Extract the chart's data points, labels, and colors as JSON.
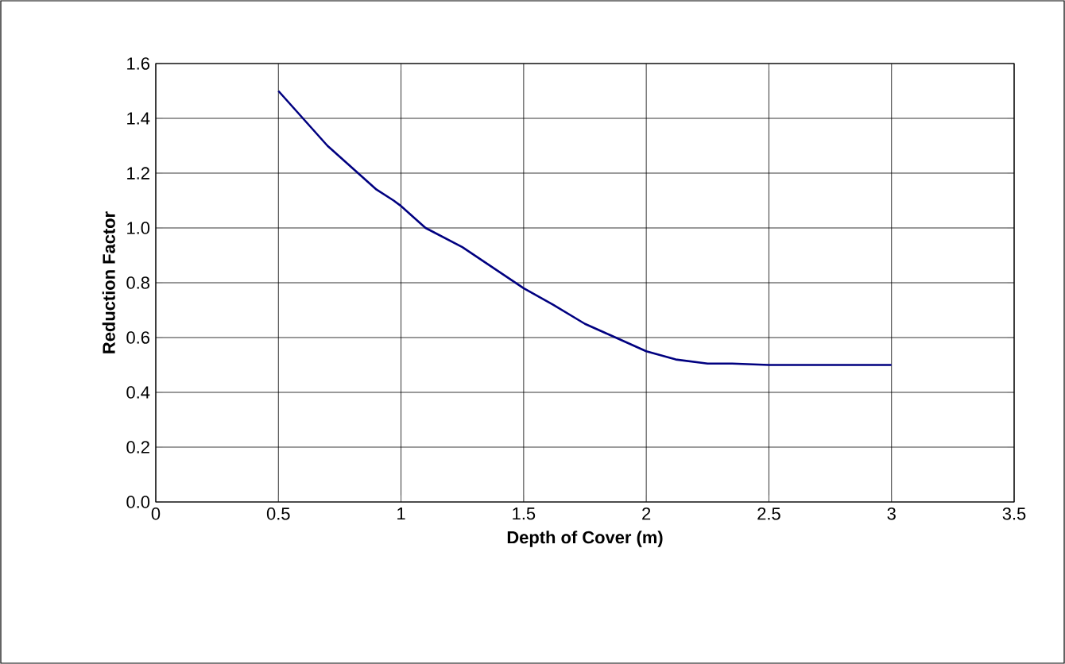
{
  "chart_data": {
    "type": "line",
    "xlabel": "Depth of Cover (m)",
    "ylabel": "Reduction Factor",
    "series": [
      {
        "color": "#000080",
        "x": [
          0.5,
          0.6,
          0.7,
          0.8,
          0.9,
          0.97,
          1.0,
          1.1,
          1.25,
          1.5,
          1.62,
          1.75,
          1.85,
          2.0,
          2.12,
          2.25,
          2.35,
          2.5,
          3.0
        ],
        "values": [
          1.5,
          1.4,
          1.3,
          1.22,
          1.14,
          1.1,
          1.08,
          1.0,
          0.93,
          0.78,
          0.72,
          0.65,
          0.61,
          0.55,
          0.52,
          0.505,
          0.505,
          0.5,
          0.5
        ]
      }
    ],
    "xlim": [
      0,
      3.5
    ],
    "xticks": [
      0,
      0.5,
      1,
      1.5,
      2,
      2.5,
      3,
      3.5
    ],
    "ylim": [
      0,
      1.6
    ],
    "yticks": [
      {
        "value": 0,
        "label": "0.0"
      },
      {
        "value": 0.2,
        "label": "0.2"
      },
      {
        "value": 0.4,
        "label": "0.4"
      },
      {
        "value": 0.6,
        "label": "0.6"
      },
      {
        "value": 0.8,
        "label": "0.8"
      },
      {
        "value": 1.0,
        "label": "1.0"
      },
      {
        "value": 1.2,
        "label": "1.2"
      },
      {
        "value": 1.4,
        "label": "1.4"
      },
      {
        "value": 1.6,
        "label": "1.6"
      }
    ],
    "grid": true,
    "marker": "none",
    "line_style": "solid"
  }
}
